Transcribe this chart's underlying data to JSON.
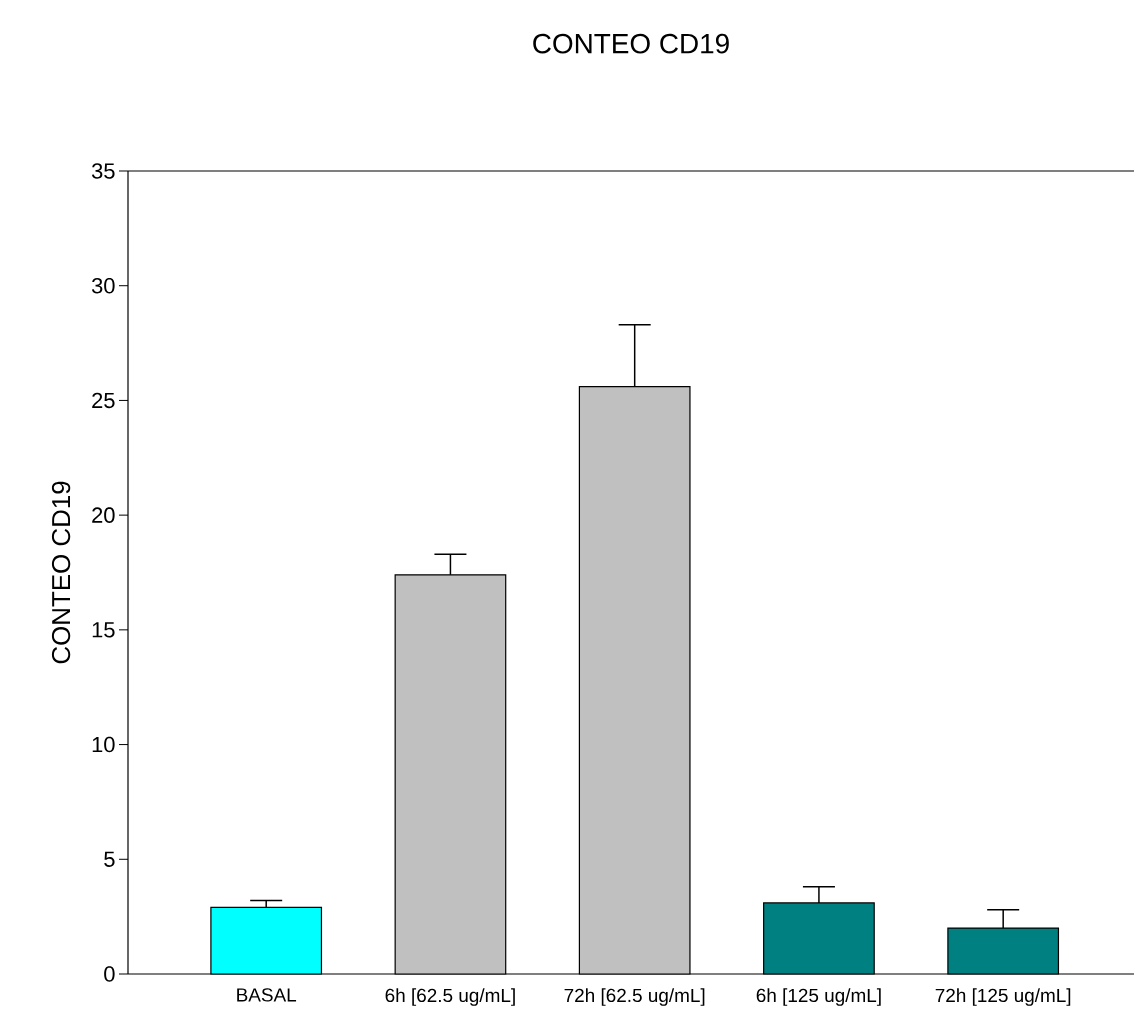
{
  "chart_data": {
    "type": "bar",
    "title": "CONTEO CD19",
    "ylabel": "CONTEO CD19",
    "categories": [
      "BASAL",
      "6h [62.5 ug/mL]",
      "72h [62.5 ug/mL]",
      "6h [125 ug/mL]",
      "72h [125 ug/mL]"
    ],
    "values": [
      2.9,
      17.4,
      25.6,
      3.1,
      2.0
    ],
    "errors": [
      [
        2.9,
        3.2
      ],
      [
        17.4,
        18.3
      ],
      [
        25.6,
        28.3
      ],
      [
        3.1,
        3.8
      ],
      [
        2.0,
        2.8
      ]
    ],
    "colors": [
      "#00ffff",
      "#c0c0c0",
      "#c0c0c0",
      "#008080",
      "#008080"
    ],
    "ylim": [
      0,
      35
    ],
    "yticks": [
      0,
      5,
      10,
      15,
      20,
      25,
      30,
      35
    ]
  }
}
